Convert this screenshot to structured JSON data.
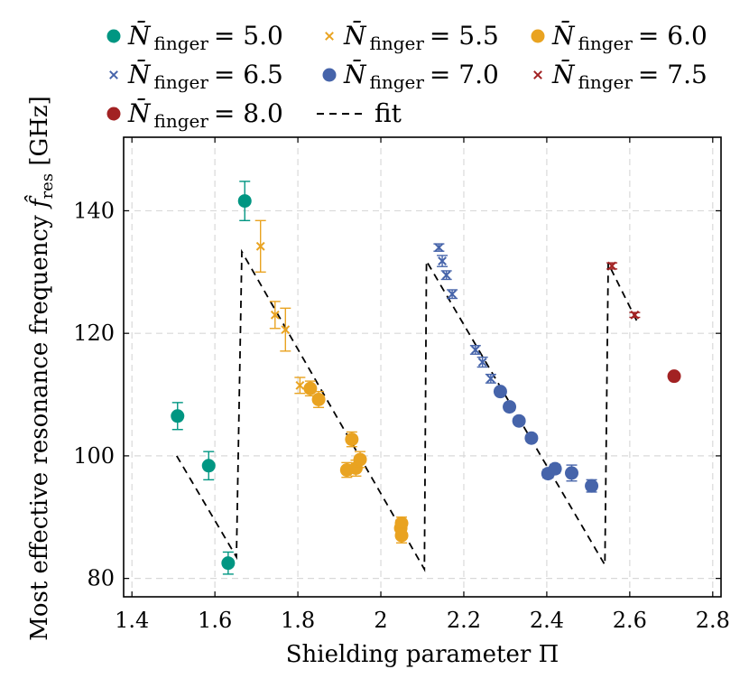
{
  "chart_data": {
    "type": "scatter",
    "title": "",
    "xlabel": "Shielding parameter Π",
    "ylabel_main": "Most effective resonance frequency ",
    "ylabel_symbol": "f̂",
    "ylabel_sub": "res",
    "ylabel_unit": " [GHz]",
    "xlim": [
      1.38,
      2.82
    ],
    "ylim": [
      77,
      152
    ],
    "xticks": [
      1.4,
      1.6,
      1.8,
      2.0,
      2.2,
      2.4,
      2.6,
      2.8
    ],
    "xtick_labels": [
      "1.4",
      "1.6",
      "1.8",
      "2",
      "2.2",
      "2.4",
      "2.6",
      "2.8"
    ],
    "yticks": [
      80,
      100,
      120,
      140
    ],
    "ytick_labels": [
      "80",
      "100",
      "120",
      "140"
    ],
    "grid": true,
    "legend_position": "top, above plot",
    "colors": {
      "teal": "#009682",
      "orange": "#e9a321",
      "blue": "#4664aa",
      "red": "#a22223"
    },
    "series": [
      {
        "name": "N̄ finger = 5.0",
        "legend_symbol": "N̄",
        "legend_sub": "finger",
        "legend_value": "= 5.0",
        "marker": "circle",
        "color": "#009682",
        "points": [
          [
            1.51,
            106.5,
            2.2
          ],
          [
            1.585,
            98.4,
            2.3
          ],
          [
            1.632,
            82.5,
            1.8
          ],
          [
            1.672,
            141.6,
            3.2
          ]
        ]
      },
      {
        "name": "N̄ finger = 5.5",
        "legend_symbol": "N̄",
        "legend_sub": "finger",
        "legend_value": "= 5.5",
        "marker": "x",
        "color": "#e9a321",
        "points": [
          [
            1.71,
            134.2,
            4.2
          ],
          [
            1.745,
            123.0,
            2.2
          ],
          [
            1.77,
            120.6,
            3.5
          ],
          [
            1.805,
            111.5,
            1.3
          ]
        ]
      },
      {
        "name": "N̄ finger = 6.0",
        "legend_symbol": "N̄",
        "legend_sub": "finger",
        "legend_value": "= 6.0",
        "marker": "circle",
        "color": "#e9a321",
        "points": [
          [
            1.83,
            111.0,
            1.2
          ],
          [
            1.85,
            109.2,
            1.3
          ],
          [
            1.918,
            97.7,
            1.2
          ],
          [
            1.93,
            102.7,
            1.2
          ],
          [
            1.94,
            98.0,
            1.3
          ],
          [
            1.95,
            99.4,
            1.3
          ],
          [
            2.048,
            88.2,
            1.3
          ],
          [
            2.05,
            89.0,
            1.0
          ],
          [
            2.05,
            87.0,
            1.2
          ]
        ]
      },
      {
        "name": "N̄ finger = 6.5",
        "legend_symbol": "N̄",
        "legend_sub": "finger",
        "legend_value": "= 6.5",
        "marker": "x",
        "color": "#4664aa",
        "points": [
          [
            2.14,
            134.0,
            0.6
          ],
          [
            2.148,
            131.8,
            0.9
          ],
          [
            2.158,
            129.5,
            0.7
          ],
          [
            2.172,
            126.4,
            0.7
          ],
          [
            2.228,
            117.3,
            0.7
          ],
          [
            2.245,
            115.3,
            0.8
          ],
          [
            2.265,
            112.6,
            0.7
          ]
        ]
      },
      {
        "name": "N̄ finger = 7.0",
        "legend_symbol": "N̄",
        "legend_sub": "finger",
        "legend_value": "= 7.0",
        "marker": "circle",
        "color": "#4664aa",
        "points": [
          [
            2.288,
            110.5,
            0.6
          ],
          [
            2.31,
            108.0,
            0.6
          ],
          [
            2.333,
            105.7,
            0.6
          ],
          [
            2.363,
            102.9,
            0.6
          ],
          [
            2.403,
            97.1,
            0.7
          ],
          [
            2.42,
            97.9,
            0.7
          ],
          [
            2.46,
            97.2,
            1.3
          ],
          [
            2.508,
            95.1,
            1.0
          ]
        ]
      },
      {
        "name": "N̄ finger = 7.5",
        "legend_symbol": "N̄",
        "legend_sub": "finger",
        "legend_value": "= 7.5",
        "marker": "x",
        "color": "#a22223",
        "points": [
          [
            2.557,
            131.0,
            0.5
          ],
          [
            2.612,
            123.0,
            0.4
          ]
        ]
      },
      {
        "name": "N̄ finger = 8.0",
        "legend_symbol": "N̄",
        "legend_sub": "finger",
        "legend_value": "= 8.0",
        "marker": "circle",
        "color": "#a22223",
        "points": [
          [
            2.707,
            113.0,
            0.0
          ]
        ]
      }
    ],
    "fit": {
      "name": "fit",
      "style": "dashed",
      "color": "#000000",
      "points": [
        [
          1.508,
          100.0
        ],
        [
          1.652,
          83.5
        ],
        [
          1.665,
          133.3
        ],
        [
          2.105,
          81.5
        ],
        [
          2.11,
          131.8
        ],
        [
          2.54,
          82.2
        ],
        [
          2.548,
          131.4
        ],
        [
          2.618,
          121.9
        ]
      ]
    }
  }
}
